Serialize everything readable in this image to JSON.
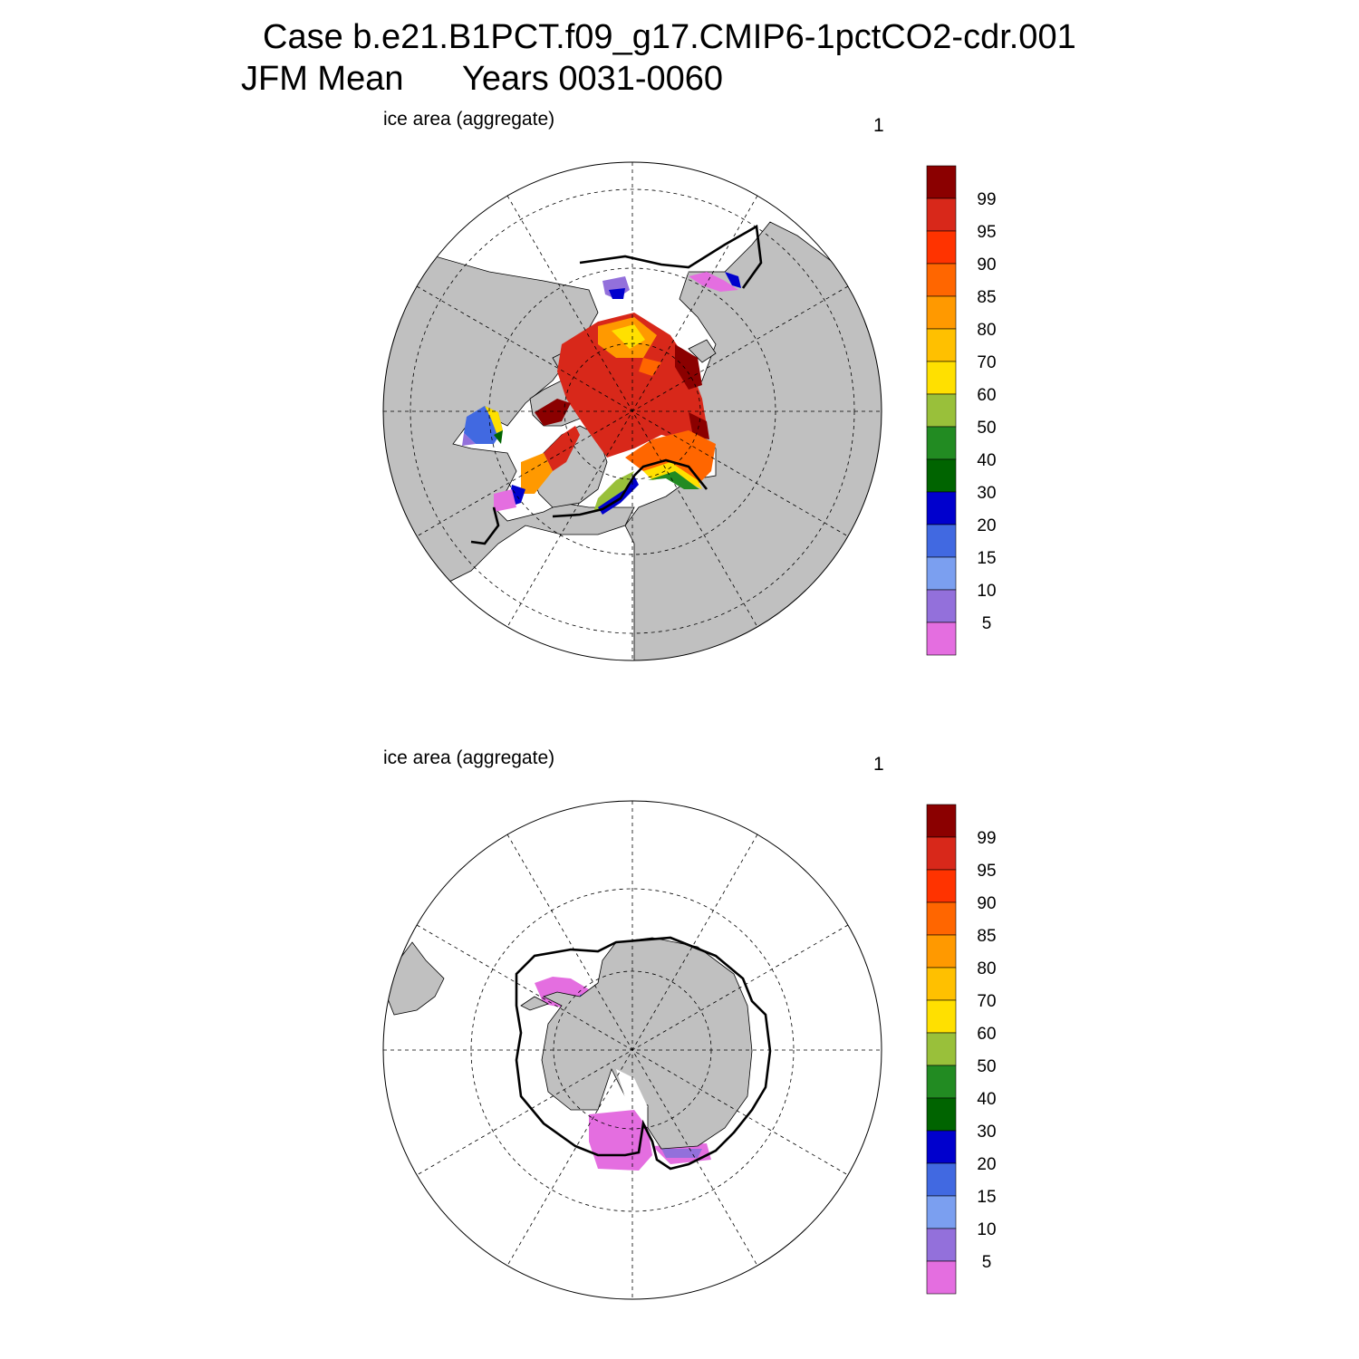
{
  "title": {
    "line1": "Case b.e21.B1PCT.f09_g17.CMIP6-1pctCO2-cdr.001",
    "line2_left": "JFM Mean",
    "line2_right": "Years 0031-0060"
  },
  "panels": [
    {
      "id": "north",
      "label": "ice area  (aggregate)",
      "number": "1"
    },
    {
      "id": "south",
      "label": "ice area  (aggregate)",
      "number": "1"
    }
  ],
  "colorbar": {
    "labels": [
      "99",
      "95",
      "90",
      "85",
      "80",
      "70",
      "60",
      "50",
      "40",
      "30",
      "20",
      "15",
      "10",
      "5"
    ],
    "colors": [
      "#8b0000",
      "#d8281a",
      "#ff3300",
      "#ff6600",
      "#ff9900",
      "#ffc000",
      "#ffe000",
      "#99c03a",
      "#228b22",
      "#006400",
      "#0000cd",
      "#4169e1",
      "#7b9ff0",
      "#9370db",
      "#e46ee0"
    ]
  },
  "colors": {
    "land": "#c0c0c0",
    "ocean": "#ffffff",
    "contour": "#000000"
  }
}
